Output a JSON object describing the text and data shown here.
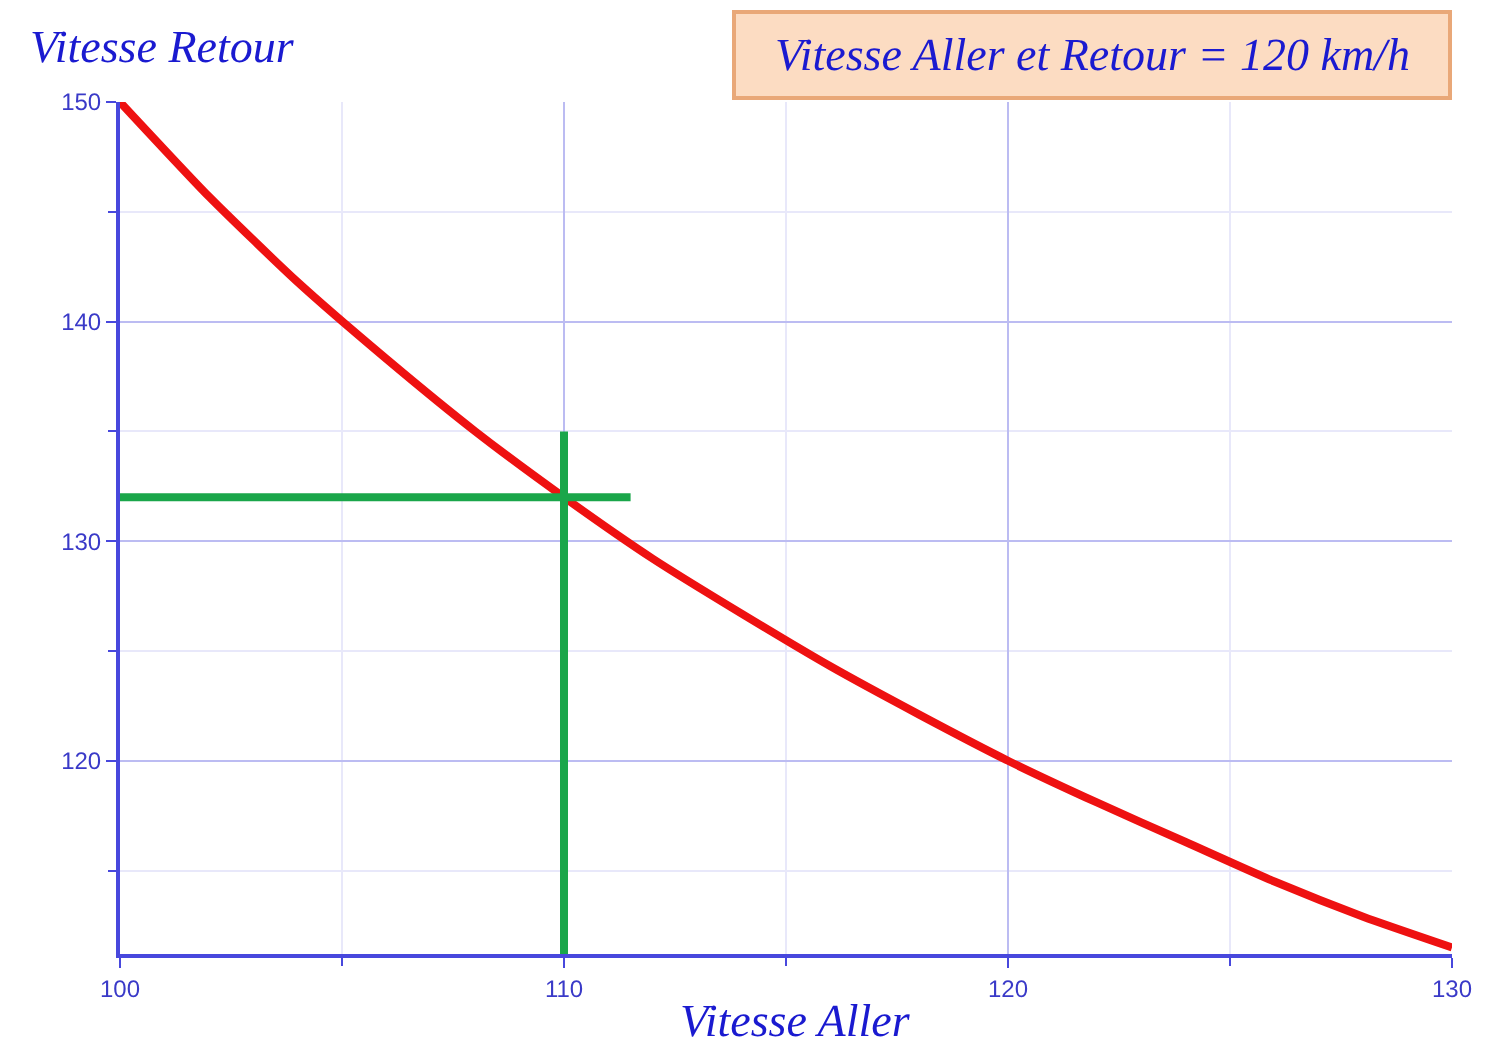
{
  "chart_data": {
    "type": "line",
    "title": "Vitesse Aller et Retour = 120 km/h",
    "xlabel": "Vitesse Aller",
    "ylabel": "Vitesse Retour",
    "xlim": [
      100,
      130
    ],
    "ylim": [
      111.2,
      150
    ],
    "xticks": [
      100,
      {
        "value": 105,
        "label": null
      },
      110,
      {
        "value": 115,
        "label": null
      },
      120,
      {
        "value": 125,
        "label": null
      },
      130
    ],
    "yticks": [
      {
        "value": 115,
        "label": null
      },
      120,
      {
        "value": 125,
        "label": null
      },
      130,
      {
        "value": 135,
        "label": null
      },
      140,
      {
        "value": 145,
        "label": null
      },
      150
    ],
    "grid": true,
    "marker": "none",
    "line_style": "solid",
    "series": [
      {
        "color": "#ee1111",
        "x": [
          100,
          102,
          104,
          106,
          108,
          110,
          112,
          114,
          116,
          118,
          120,
          122,
          124,
          126,
          128,
          130
        ],
        "values": [
          150,
          145.7,
          141.8,
          138.3,
          135,
          132,
          129.2,
          126.7,
          124.3,
          122.1,
          120,
          118.1,
          116.3,
          114.5,
          112.9,
          111.5
        ]
      },
      {
        "color": "#1aa64a",
        "x": [
          100,
          111.5
        ],
        "values": [
          132,
          132
        ]
      },
      {
        "color": "#1aa64a",
        "x": [
          110,
          110
        ],
        "values": [
          111.2,
          135
        ]
      }
    ]
  }
}
